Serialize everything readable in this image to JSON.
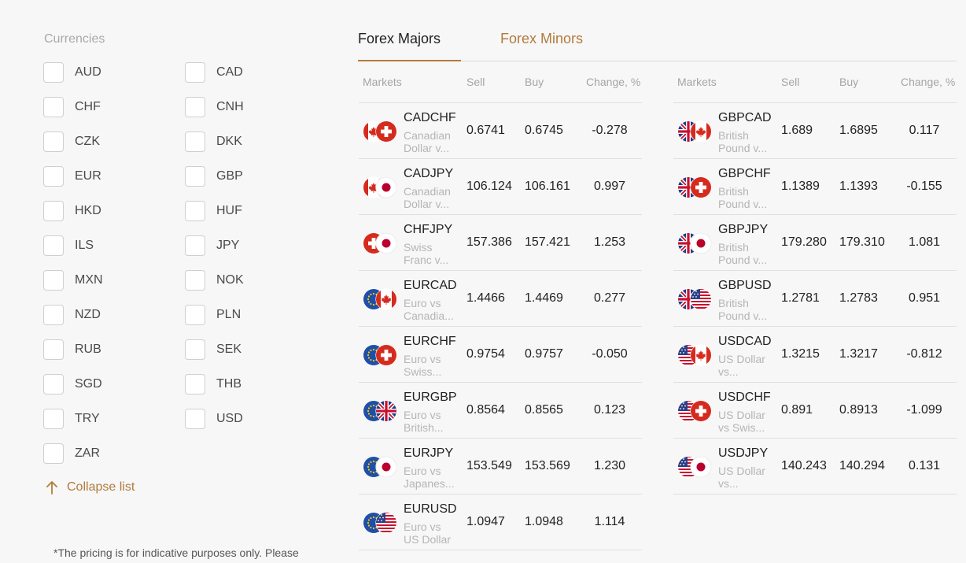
{
  "filter": {
    "title": "Currencies",
    "currencies": [
      "AUD",
      "CAD",
      "CHF",
      "CNH",
      "CZK",
      "DKK",
      "EUR",
      "GBP",
      "HKD",
      "HUF",
      "ILS",
      "JPY",
      "MXN",
      "NOK",
      "NZD",
      "PLN",
      "RUB",
      "SEK",
      "SGD",
      "THB",
      "TRY",
      "USD",
      "ZAR"
    ],
    "collapse_label": "Collapse list",
    "disclaimer": "*The pricing is for indicative purposes only. Please"
  },
  "tabs": [
    {
      "label": "Forex Majors",
      "active": true
    },
    {
      "label": "Forex Minors",
      "active": false
    }
  ],
  "table_headers": {
    "markets": "Markets",
    "sell": "Sell",
    "buy": "Buy",
    "change": "Change, %"
  },
  "colors": {
    "accent": "#b37a3c",
    "muted": "#a5a5a5"
  },
  "tables": [
    {
      "rows": [
        {
          "symbol": "CADCHF",
          "desc1": "Canadian",
          "desc2": "Dollar v...",
          "sell": "0.6741",
          "buy": "0.6745",
          "change": "-0.278",
          "flags": [
            "ca-flag-icon",
            "ch-flag-icon"
          ]
        },
        {
          "symbol": "CADJPY",
          "desc1": "Canadian",
          "desc2": "Dollar v...",
          "sell": "106.124",
          "buy": "106.161",
          "change": "0.997",
          "flags": [
            "ca-flag-icon",
            "jp-flag-icon"
          ]
        },
        {
          "symbol": "CHFJPY",
          "desc1": "Swiss",
          "desc2": "Franc v...",
          "sell": "157.386",
          "buy": "157.421",
          "change": "1.253",
          "flags": [
            "ch-flag-icon",
            "jp-flag-icon"
          ]
        },
        {
          "symbol": "EURCAD",
          "desc1": "Euro vs",
          "desc2": "Canadia...",
          "sell": "1.4466",
          "buy": "1.4469",
          "change": "0.277",
          "flags": [
            "eu-flag-icon",
            "ca-flag-icon"
          ]
        },
        {
          "symbol": "EURCHF",
          "desc1": "Euro vs",
          "desc2": "Swiss...",
          "sell": "0.9754",
          "buy": "0.9757",
          "change": "-0.050",
          "flags": [
            "eu-flag-icon",
            "ch-flag-icon"
          ]
        },
        {
          "symbol": "EURGBP",
          "desc1": "Euro vs",
          "desc2": "British...",
          "sell": "0.8564",
          "buy": "0.8565",
          "change": "0.123",
          "flags": [
            "eu-flag-icon",
            "gb-flag-icon"
          ]
        },
        {
          "symbol": "EURJPY",
          "desc1": "Euro vs",
          "desc2": "Japanes...",
          "sell": "153.549",
          "buy": "153.569",
          "change": "1.230",
          "flags": [
            "eu-flag-icon",
            "jp-flag-icon"
          ]
        },
        {
          "symbol": "EURUSD",
          "desc1": "Euro vs",
          "desc2": "US Dollar",
          "sell": "1.0947",
          "buy": "1.0948",
          "change": "1.114",
          "flags": [
            "eu-flag-icon",
            "us-flag-icon"
          ]
        }
      ]
    },
    {
      "rows": [
        {
          "symbol": "GBPCAD",
          "desc1": "British",
          "desc2": "Pound v...",
          "sell": "1.689",
          "buy": "1.6895",
          "change": "0.117",
          "flags": [
            "gb-flag-icon",
            "ca-flag-icon"
          ]
        },
        {
          "symbol": "GBPCHF",
          "desc1": "British",
          "desc2": "Pound v...",
          "sell": "1.1389",
          "buy": "1.1393",
          "change": "-0.155",
          "flags": [
            "gb-flag-icon",
            "ch-flag-icon"
          ]
        },
        {
          "symbol": "GBPJPY",
          "desc1": "British",
          "desc2": "Pound v...",
          "sell": "179.280",
          "buy": "179.310",
          "change": "1.081",
          "flags": [
            "gb-flag-icon",
            "jp-flag-icon"
          ]
        },
        {
          "symbol": "GBPUSD",
          "desc1": "British",
          "desc2": "Pound v...",
          "sell": "1.2781",
          "buy": "1.2783",
          "change": "0.951",
          "flags": [
            "gb-flag-icon",
            "us-flag-icon"
          ]
        },
        {
          "symbol": "USDCAD",
          "desc1": "US Dollar",
          "desc2": "vs...",
          "sell": "1.3215",
          "buy": "1.3217",
          "change": "-0.812",
          "flags": [
            "us-flag-icon",
            "ca-flag-icon"
          ]
        },
        {
          "symbol": "USDCHF",
          "desc1": "US Dollar",
          "desc2": "vs Swis...",
          "sell": "0.891",
          "buy": "0.8913",
          "change": "-1.099",
          "flags": [
            "us-flag-icon",
            "ch-flag-icon"
          ]
        },
        {
          "symbol": "USDJPY",
          "desc1": "US Dollar",
          "desc2": "vs...",
          "sell": "140.243",
          "buy": "140.294",
          "change": "0.131",
          "flags": [
            "us-flag-icon",
            "jp-flag-icon"
          ]
        }
      ]
    }
  ]
}
